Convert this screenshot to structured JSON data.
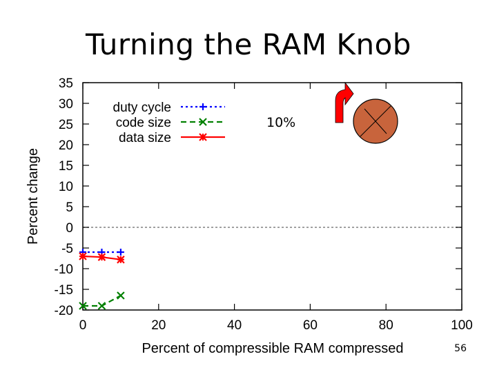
{
  "slide": {
    "title": "Turning the RAM Knob",
    "number": "56"
  },
  "chart_data": {
    "type": "line",
    "title": "",
    "xlabel": "Percent of compressible RAM compressed",
    "ylabel": "Percent change",
    "xlim": [
      0,
      100
    ],
    "ylim": [
      -20,
      35
    ],
    "xticks": [
      0,
      20,
      40,
      60,
      80,
      100
    ],
    "yticks": [
      35,
      30,
      25,
      20,
      15,
      10,
      5,
      0,
      -5,
      -10,
      -15,
      -20
    ],
    "grid": false,
    "legend_position": "top-left",
    "reference_line_y": 0,
    "series": [
      {
        "name": "duty cycle",
        "color": "#0000ff",
        "style": "dotted",
        "marker": "plus",
        "x": [
          0,
          5,
          10
        ],
        "y": [
          -6,
          -6,
          -6
        ]
      },
      {
        "name": "code size",
        "color": "#008000",
        "style": "dashed",
        "marker": "x",
        "x": [
          0,
          5,
          10
        ],
        "y": [
          -19,
          -19,
          -16.5
        ]
      },
      {
        "name": "data size",
        "color": "#ff0000",
        "style": "solid",
        "marker": "star",
        "x": [
          0,
          5,
          10
        ],
        "y": [
          -7,
          -7.2,
          -7.8
        ]
      }
    ],
    "annotation": {
      "text": "10%"
    }
  },
  "knob": {
    "fill": "#c8643c",
    "arrow_color": "#ff0000"
  }
}
